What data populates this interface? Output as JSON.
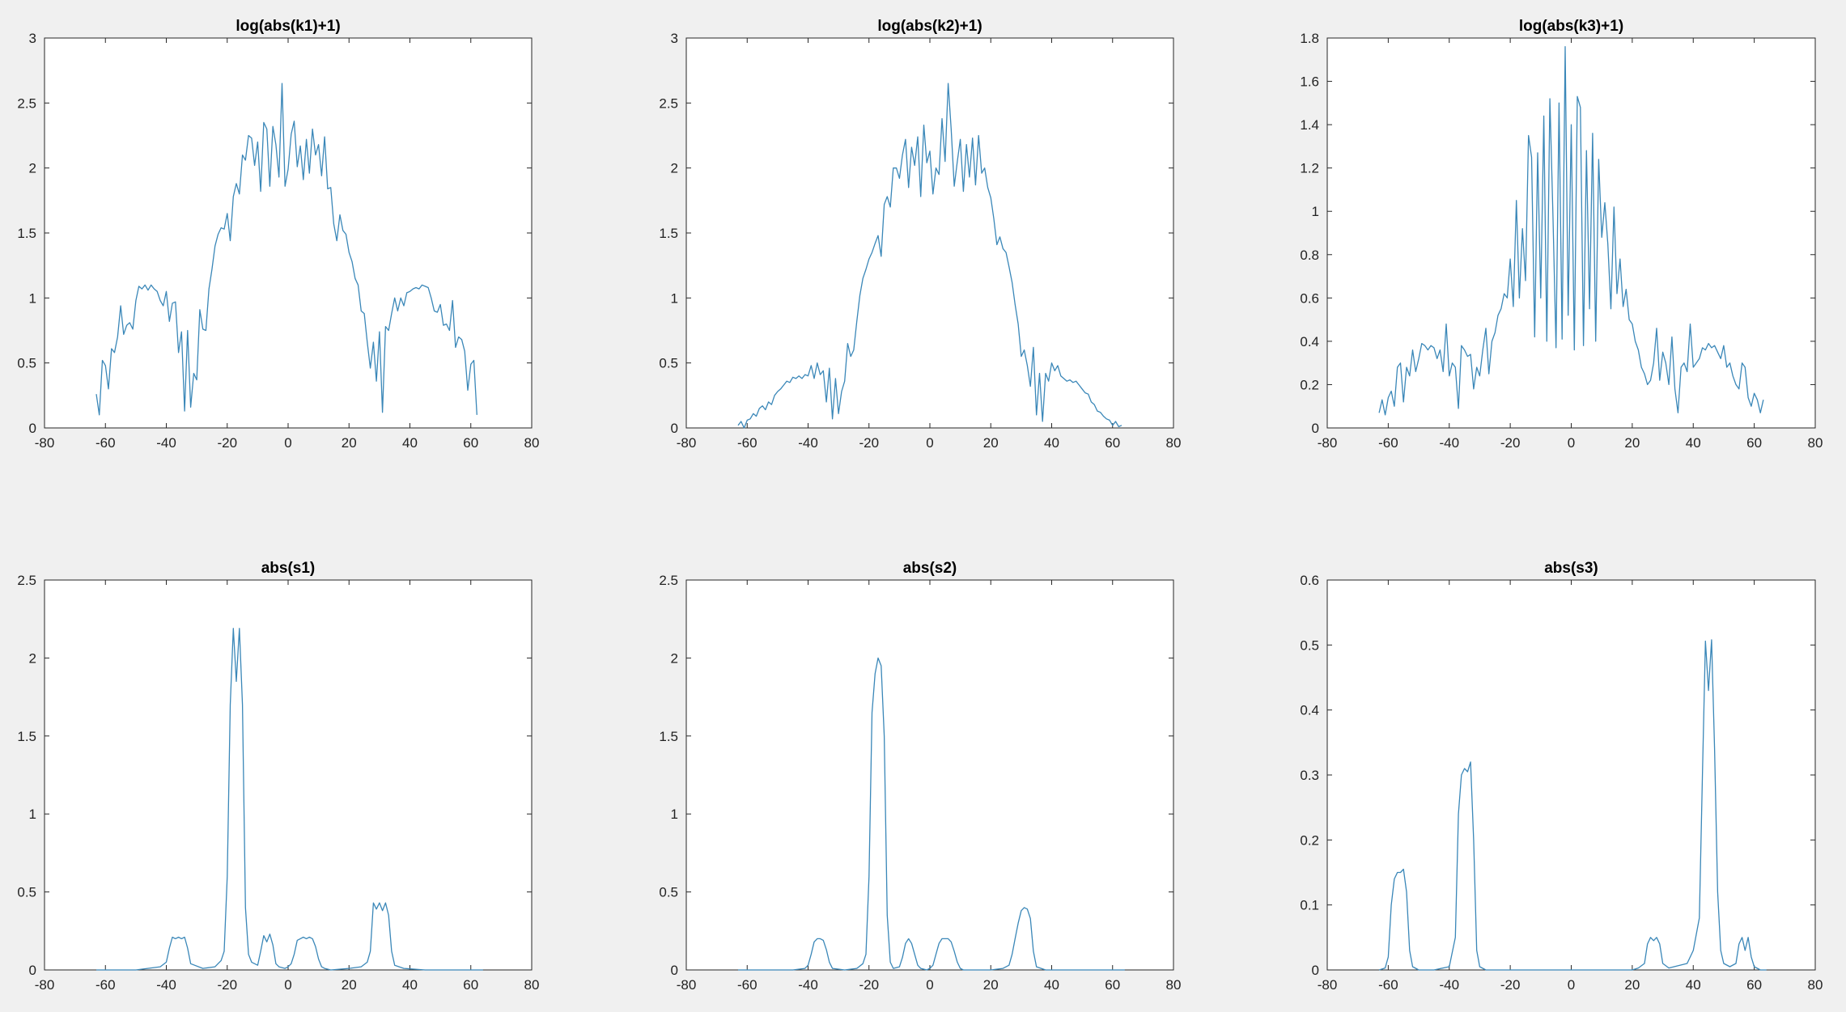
{
  "figure": {
    "background": "#f0f0f0",
    "axes_background": "#ffffff",
    "line_color": "#3a87b8",
    "axes_color": "#262626"
  },
  "chart_data": [
    {
      "type": "line",
      "title": "log(abs(k1)+1)",
      "xlabel": "",
      "ylabel": "",
      "xlim": [
        -80,
        80
      ],
      "ylim": [
        0,
        3
      ],
      "xticks": [
        "-80",
        "-60",
        "-40",
        "-20",
        "0",
        "20",
        "40",
        "60",
        "80"
      ],
      "yticks": [
        "0",
        "0.5",
        "1",
        "1.5",
        "2",
        "2.5",
        "3"
      ],
      "grid": false,
      "series": [
        {
          "x_start": -63,
          "x_step": 1,
          "values": [
            0.26,
            0.1,
            0.52,
            0.48,
            0.3,
            0.61,
            0.58,
            0.7,
            0.94,
            0.72,
            0.79,
            0.81,
            0.76,
            0.98,
            1.09,
            1.07,
            1.1,
            1.06,
            1.1,
            1.07,
            1.05,
            0.98,
            0.94,
            1.05,
            0.82,
            0.96,
            0.97,
            0.58,
            0.74,
            0.13,
            0.75,
            0.16,
            0.42,
            0.37,
            0.91,
            0.76,
            0.75,
            1.07,
            1.22,
            1.4,
            1.49,
            1.54,
            1.53,
            1.65,
            1.44,
            1.78,
            1.88,
            1.8,
            2.1,
            2.06,
            2.25,
            2.23,
            2.02,
            2.2,
            1.82,
            2.35,
            2.3,
            1.86,
            2.32,
            2.18,
            1.93,
            2.65,
            1.86,
            1.99,
            2.26,
            2.36,
            2.01,
            2.17,
            1.91,
            2.22,
            1.96,
            2.3,
            2.1,
            2.18,
            1.94,
            2.24,
            1.84,
            1.85,
            1.57,
            1.44,
            1.64,
            1.52,
            1.49,
            1.35,
            1.28,
            1.15,
            1.1,
            0.9,
            0.88,
            0.66,
            0.46,
            0.66,
            0.36,
            0.74,
            0.12,
            0.78,
            0.75,
            0.88,
            1.0,
            0.9,
            1.0,
            0.94,
            1.04,
            1.05,
            1.07,
            1.08,
            1.07,
            1.1,
            1.09,
            1.08,
            1.0,
            0.9,
            0.89,
            0.95,
            0.79,
            0.8,
            0.75,
            0.98,
            0.62,
            0.7,
            0.68,
            0.59,
            0.29,
            0.49,
            0.52,
            0.1
          ]
        }
      ]
    },
    {
      "type": "line",
      "title": "log(abs(k2)+1)",
      "xlabel": "",
      "ylabel": "",
      "xlim": [
        -80,
        80
      ],
      "ylim": [
        0,
        3
      ],
      "xticks": [
        "-80",
        "-60",
        "-40",
        "-20",
        "0",
        "20",
        "40",
        "60",
        "80"
      ],
      "yticks": [
        "0",
        "0.5",
        "1",
        "1.5",
        "2",
        "2.5",
        "3"
      ],
      "grid": false,
      "series": [
        {
          "x_start": -63,
          "x_step": 1,
          "values": [
            0.02,
            0.05,
            0.0,
            0.06,
            0.07,
            0.11,
            0.09,
            0.15,
            0.17,
            0.14,
            0.2,
            0.18,
            0.25,
            0.28,
            0.3,
            0.33,
            0.36,
            0.35,
            0.39,
            0.38,
            0.4,
            0.38,
            0.41,
            0.4,
            0.48,
            0.38,
            0.5,
            0.41,
            0.44,
            0.2,
            0.46,
            0.07,
            0.38,
            0.11,
            0.28,
            0.36,
            0.65,
            0.55,
            0.6,
            0.82,
            1.02,
            1.15,
            1.22,
            1.3,
            1.35,
            1.42,
            1.48,
            1.32,
            1.72,
            1.78,
            1.7,
            2.0,
            2.0,
            1.92,
            2.1,
            2.22,
            1.85,
            2.16,
            2.02,
            2.24,
            1.78,
            2.33,
            2.04,
            2.13,
            1.8,
            2.0,
            1.95,
            2.38,
            2.05,
            2.65,
            2.3,
            1.86,
            2.05,
            2.22,
            1.82,
            2.18,
            1.93,
            2.23,
            1.87,
            2.25,
            1.96,
            2.0,
            1.85,
            1.77,
            1.61,
            1.41,
            1.47,
            1.38,
            1.35,
            1.24,
            1.12,
            0.95,
            0.8,
            0.55,
            0.6,
            0.48,
            0.32,
            0.62,
            0.1,
            0.42,
            0.05,
            0.42,
            0.36,
            0.5,
            0.44,
            0.48,
            0.4,
            0.38,
            0.36,
            0.37,
            0.35,
            0.36,
            0.33,
            0.3,
            0.27,
            0.26,
            0.2,
            0.18,
            0.13,
            0.12,
            0.09,
            0.07,
            0.06,
            0.02,
            0.05,
            0.01,
            0.02
          ]
        }
      ]
    },
    {
      "type": "line",
      "title": "log(abs(k3)+1)",
      "xlabel": "",
      "ylabel": "",
      "xlim": [
        -80,
        80
      ],
      "ylim": [
        0,
        1.8
      ],
      "xticks": [
        "-80",
        "-60",
        "-40",
        "-20",
        "0",
        "20",
        "40",
        "60",
        "80"
      ],
      "yticks": [
        "0",
        "0.2",
        "0.4",
        "0.6",
        "0.8",
        "1",
        "1.2",
        "1.4",
        "1.6",
        "1.8"
      ],
      "grid": false,
      "series": [
        {
          "x_start": -63,
          "x_step": 1,
          "values": [
            0.07,
            0.13,
            0.06,
            0.14,
            0.17,
            0.1,
            0.28,
            0.3,
            0.12,
            0.28,
            0.24,
            0.36,
            0.26,
            0.32,
            0.39,
            0.38,
            0.36,
            0.38,
            0.37,
            0.32,
            0.36,
            0.26,
            0.48,
            0.24,
            0.3,
            0.28,
            0.09,
            0.38,
            0.36,
            0.33,
            0.34,
            0.18,
            0.28,
            0.24,
            0.36,
            0.46,
            0.25,
            0.4,
            0.44,
            0.52,
            0.55,
            0.62,
            0.6,
            0.78,
            0.56,
            1.05,
            0.6,
            0.92,
            0.68,
            1.35,
            1.25,
            0.42,
            1.27,
            0.6,
            1.44,
            0.4,
            1.52,
            0.98,
            0.37,
            1.5,
            0.41,
            1.76,
            0.52,
            1.4,
            0.36,
            1.53,
            1.48,
            0.38,
            1.28,
            0.55,
            1.36,
            0.4,
            1.24,
            0.88,
            1.04,
            0.85,
            0.55,
            1.02,
            0.62,
            0.78,
            0.56,
            0.64,
            0.5,
            0.48,
            0.4,
            0.36,
            0.28,
            0.25,
            0.2,
            0.22,
            0.3,
            0.46,
            0.22,
            0.35,
            0.3,
            0.2,
            0.42,
            0.18,
            0.07,
            0.28,
            0.3,
            0.26,
            0.48,
            0.28,
            0.3,
            0.32,
            0.37,
            0.36,
            0.39,
            0.37,
            0.38,
            0.35,
            0.32,
            0.38,
            0.28,
            0.3,
            0.24,
            0.2,
            0.18,
            0.3,
            0.28,
            0.14,
            0.1,
            0.16,
            0.13,
            0.07,
            0.13
          ]
        }
      ]
    },
    {
      "type": "line",
      "title": "abs(s1)",
      "xlabel": "",
      "ylabel": "",
      "xlim": [
        -80,
        80
      ],
      "ylim": [
        0,
        2.5
      ],
      "xticks": [
        "-80",
        "-60",
        "-40",
        "-20",
        "0",
        "20",
        "40",
        "60",
        "80"
      ],
      "yticks": [
        "0",
        "0.5",
        "1",
        "1.5",
        "2",
        "2.5"
      ],
      "grid": false,
      "series": [
        {
          "x": [
            -63,
            -50,
            -42,
            -40,
            -39,
            -38,
            -37,
            -36,
            -35,
            -34,
            -33,
            -32,
            -28,
            -24,
            -22,
            -21,
            -20,
            -19,
            -18,
            -17,
            -16,
            -15,
            -14,
            -13,
            -12,
            -10,
            -9,
            -8,
            -7,
            -6,
            -5,
            -4,
            -3,
            -1,
            0,
            1,
            2,
            3,
            4,
            5,
            6,
            7,
            8,
            9,
            10,
            11,
            12,
            14,
            20,
            24,
            26,
            27,
            28,
            29,
            30,
            31,
            32,
            33,
            34,
            35,
            38,
            45,
            55,
            64
          ],
          "values": [
            0,
            0,
            0.02,
            0.05,
            0.14,
            0.21,
            0.2,
            0.21,
            0.2,
            0.21,
            0.14,
            0.04,
            0.01,
            0.02,
            0.06,
            0.12,
            0.6,
            1.7,
            2.19,
            1.85,
            2.19,
            1.7,
            0.4,
            0.1,
            0.05,
            0.03,
            0.12,
            0.22,
            0.18,
            0.23,
            0.16,
            0.04,
            0.02,
            0.01,
            0.02,
            0.04,
            0.1,
            0.19,
            0.2,
            0.21,
            0.2,
            0.21,
            0.2,
            0.15,
            0.07,
            0.02,
            0.01,
            0.0,
            0.01,
            0.02,
            0.05,
            0.12,
            0.43,
            0.39,
            0.43,
            0.38,
            0.43,
            0.35,
            0.12,
            0.03,
            0.01,
            0,
            0,
            0
          ]
        }
      ]
    },
    {
      "type": "line",
      "title": "abs(s2)",
      "xlabel": "",
      "ylabel": "",
      "xlim": [
        -80,
        80
      ],
      "ylim": [
        0,
        2.5
      ],
      "xticks": [
        "-80",
        "-60",
        "-40",
        "-20",
        "0",
        "20",
        "40",
        "60",
        "80"
      ],
      "yticks": [
        "0",
        "0.5",
        "1",
        "1.5",
        "2",
        "2.5"
      ],
      "grid": false,
      "series": [
        {
          "x": [
            -63,
            -45,
            -41,
            -40,
            -39,
            -38,
            -37,
            -36,
            -35,
            -34,
            -33,
            -32,
            -28,
            -24,
            -22,
            -21,
            -20,
            -19,
            -18,
            -17,
            -16,
            -15,
            -14,
            -13,
            -12,
            -10,
            -9,
            -8,
            -7,
            -6,
            -5,
            -4,
            -3,
            -1,
            0,
            1,
            2,
            3,
            4,
            5,
            6,
            7,
            8,
            9,
            10,
            11,
            12,
            14,
            20,
            24,
            26,
            27,
            28,
            29,
            30,
            31,
            32,
            33,
            34,
            35,
            38,
            45,
            55,
            64
          ],
          "values": [
            0,
            0,
            0.01,
            0.03,
            0.1,
            0.18,
            0.2,
            0.2,
            0.19,
            0.13,
            0.05,
            0.01,
            0.0,
            0.01,
            0.04,
            0.1,
            0.6,
            1.65,
            1.9,
            2.0,
            1.95,
            1.5,
            0.35,
            0.05,
            0.01,
            0.02,
            0.08,
            0.17,
            0.2,
            0.17,
            0.1,
            0.03,
            0.01,
            0.0,
            0.01,
            0.03,
            0.1,
            0.17,
            0.2,
            0.2,
            0.2,
            0.18,
            0.12,
            0.05,
            0.01,
            0.0,
            0.0,
            0.0,
            0.0,
            0.01,
            0.03,
            0.1,
            0.2,
            0.3,
            0.38,
            0.4,
            0.39,
            0.33,
            0.12,
            0.02,
            0,
            0,
            0,
            0
          ]
        }
      ]
    },
    {
      "type": "line",
      "title": "abs(s3)",
      "xlabel": "",
      "ylabel": "",
      "xlim": [
        -80,
        80
      ],
      "ylim": [
        0,
        0.6
      ],
      "xticks": [
        "-80",
        "-60",
        "-40",
        "-20",
        "0",
        "20",
        "40",
        "60",
        "80"
      ],
      "yticks": [
        "0",
        "0.1",
        "0.2",
        "0.3",
        "0.4",
        "0.5",
        "0.6"
      ],
      "grid": false,
      "series": [
        {
          "x": [
            -63,
            -61,
            -60,
            -59,
            -58,
            -57,
            -56,
            -55,
            -54,
            -53,
            -52,
            -50,
            -45,
            -40,
            -38,
            -37,
            -36,
            -35,
            -34,
            -33,
            -32,
            -31,
            -30,
            -28,
            -20,
            -10,
            0,
            10,
            20,
            22,
            24,
            25,
            26,
            27,
            28,
            29,
            30,
            32,
            38,
            40,
            42,
            43,
            44,
            45,
            46,
            47,
            48,
            49,
            50,
            52,
            54,
            55,
            56,
            57,
            58,
            59,
            60,
            62,
            64
          ],
          "values": [
            0,
            0.003,
            0.02,
            0.1,
            0.14,
            0.15,
            0.15,
            0.155,
            0.12,
            0.03,
            0.005,
            0,
            0,
            0.005,
            0.05,
            0.24,
            0.3,
            0.31,
            0.305,
            0.32,
            0.2,
            0.03,
            0.005,
            0,
            0,
            0,
            0,
            0,
            0,
            0.003,
            0.01,
            0.04,
            0.05,
            0.045,
            0.05,
            0.04,
            0.01,
            0.003,
            0.01,
            0.03,
            0.08,
            0.3,
            0.506,
            0.43,
            0.508,
            0.34,
            0.12,
            0.03,
            0.01,
            0.005,
            0.01,
            0.04,
            0.05,
            0.03,
            0.05,
            0.02,
            0.005,
            0,
            0
          ]
        }
      ]
    }
  ]
}
